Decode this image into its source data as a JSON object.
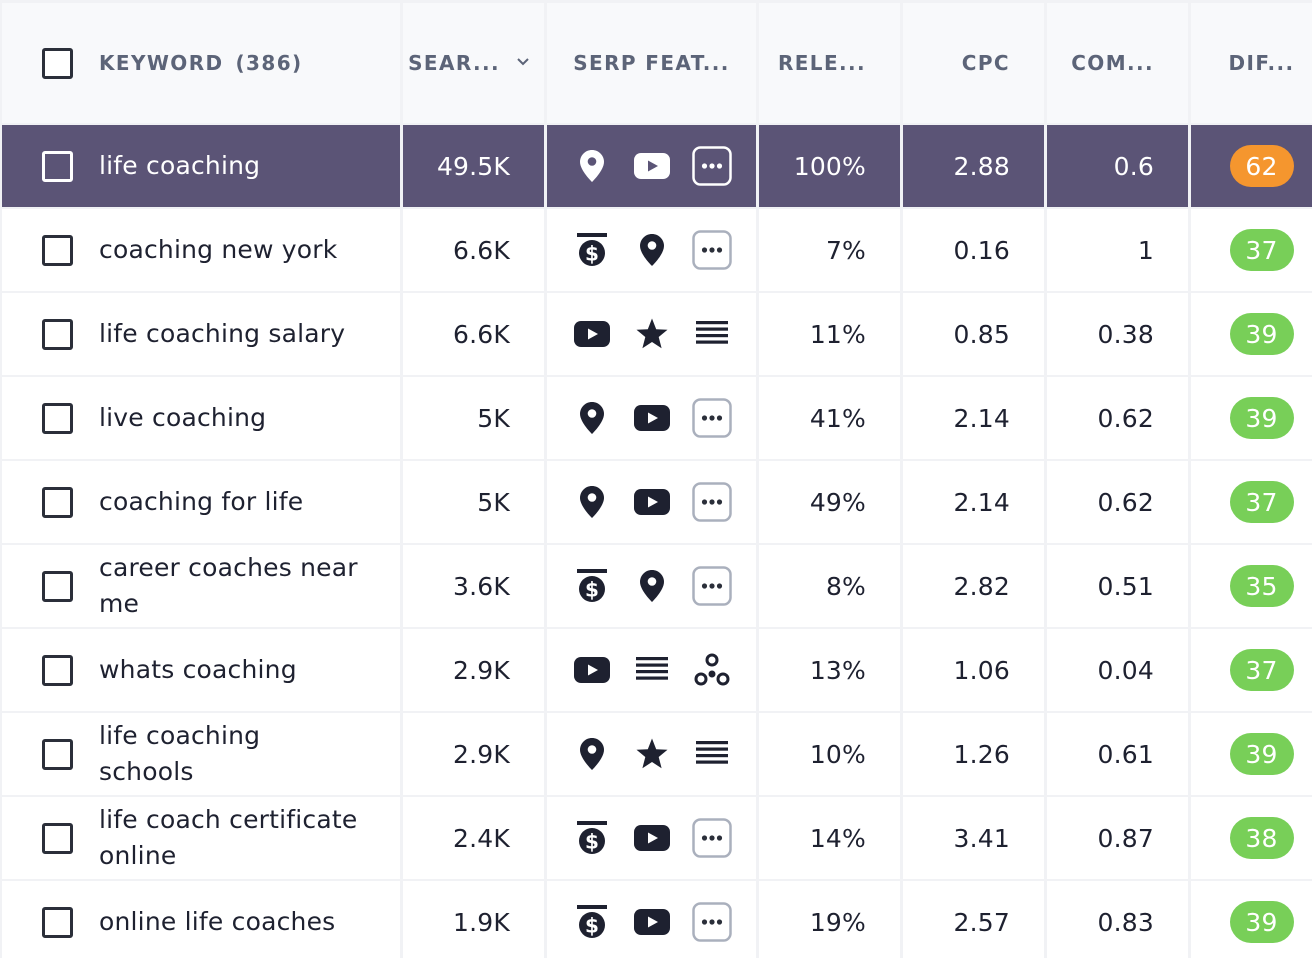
{
  "colors": {
    "highlight_row": "#5b5476",
    "badge_orange": "#f5962e",
    "badge_green": "#78cf58",
    "header_text": "#5c6478"
  },
  "header": {
    "keyword_label": "KEYWORD",
    "keyword_count": "(386)",
    "search_volume": "SEAR...",
    "serp_features": "SERP FEAT...",
    "relevance": "RELE...",
    "cpc": "CPC",
    "competition": "COM...",
    "difficulty": "DIF..."
  },
  "rows": [
    {
      "keyword": "life coaching",
      "search_volume": "49.5K",
      "serp": [
        "location-pin-icon",
        "youtube-icon",
        "more-icon"
      ],
      "relevance": "100%",
      "cpc": "2.88",
      "competition": "0.6",
      "difficulty": "62",
      "difficulty_color": "#f5962e",
      "highlighted": true
    },
    {
      "keyword": "coaching new york",
      "search_volume": "6.6K",
      "serp": [
        "paid-ad-icon",
        "location-pin-icon",
        "more-icon"
      ],
      "relevance": "7%",
      "cpc": "0.16",
      "competition": "1",
      "difficulty": "37",
      "difficulty_color": "#78cf58"
    },
    {
      "keyword": "life coaching salary",
      "search_volume": "6.6K",
      "serp": [
        "youtube-icon",
        "star-icon",
        "list-icon"
      ],
      "relevance": "11%",
      "cpc": "0.85",
      "competition": "0.38",
      "difficulty": "39",
      "difficulty_color": "#78cf58"
    },
    {
      "keyword": "live coaching",
      "search_volume": "5K",
      "serp": [
        "location-pin-icon",
        "youtube-icon",
        "more-icon"
      ],
      "relevance": "41%",
      "cpc": "2.14",
      "competition": "0.62",
      "difficulty": "39",
      "difficulty_color": "#78cf58"
    },
    {
      "keyword": "coaching for life",
      "search_volume": "5K",
      "serp": [
        "location-pin-icon",
        "youtube-icon",
        "more-icon"
      ],
      "relevance": "49%",
      "cpc": "2.14",
      "competition": "0.62",
      "difficulty": "37",
      "difficulty_color": "#78cf58"
    },
    {
      "keyword": "career coaches near me",
      "search_volume": "3.6K",
      "serp": [
        "paid-ad-icon",
        "location-pin-icon",
        "more-icon"
      ],
      "relevance": "8%",
      "cpc": "2.82",
      "competition": "0.51",
      "difficulty": "35",
      "difficulty_color": "#78cf58"
    },
    {
      "keyword": "whats coaching",
      "search_volume": "2.9K",
      "serp": [
        "youtube-icon",
        "list-icon",
        "knowledge-graph-icon"
      ],
      "relevance": "13%",
      "cpc": "1.06",
      "competition": "0.04",
      "difficulty": "37",
      "difficulty_color": "#78cf58"
    },
    {
      "keyword": "life coaching schools",
      "search_volume": "2.9K",
      "serp": [
        "location-pin-icon",
        "star-icon",
        "list-icon"
      ],
      "relevance": "10%",
      "cpc": "1.26",
      "competition": "0.61",
      "difficulty": "39",
      "difficulty_color": "#78cf58"
    },
    {
      "keyword": "life coach certificate online",
      "search_volume": "2.4K",
      "serp": [
        "paid-ad-icon",
        "youtube-icon",
        "more-icon"
      ],
      "relevance": "14%",
      "cpc": "3.41",
      "competition": "0.87",
      "difficulty": "38",
      "difficulty_color": "#78cf58"
    },
    {
      "keyword": "online life coaches",
      "search_volume": "1.9K",
      "serp": [
        "paid-ad-icon",
        "youtube-icon",
        "more-icon"
      ],
      "relevance": "19%",
      "cpc": "2.57",
      "competition": "0.83",
      "difficulty": "39",
      "difficulty_color": "#78cf58"
    }
  ]
}
